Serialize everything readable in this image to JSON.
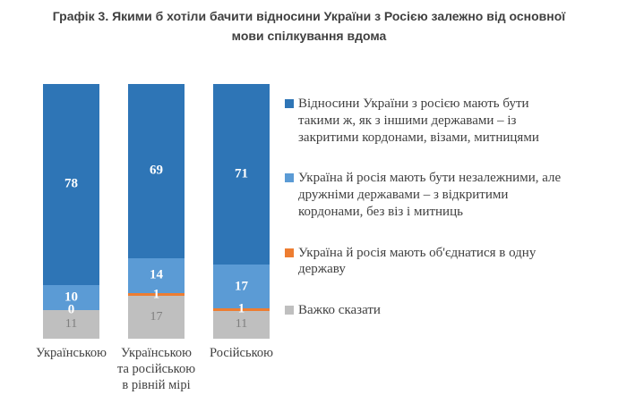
{
  "title": "Графік 3. Якими б хотіли бачити відносини України з Росією залежно від основної мови спілкування вдома",
  "chart_data": {
    "type": "bar",
    "subtype": "stacked-column-100pct",
    "title": "Графік 3. Якими б хотіли бачити відносини України з Росією залежно від основної мови спілкування вдома",
    "categories": [
      "Українською",
      "Українською та російською в рівній мірі",
      "Російською"
    ],
    "category_lines": [
      [
        "Українською"
      ],
      [
        "Українською",
        "та російською",
        "в рівній мірі"
      ],
      [
        "Російською"
      ]
    ],
    "series": [
      {
        "name": "Відносини України з росією мають бути такими ж, як з іншими державами – із закритими кордонами, візами, митницями",
        "name_lines": [
          "Відносини України з росією мають бути",
          "такими ж, як з іншими державами  – із",
          "закритими кордонами, візами, митницями"
        ],
        "color": "#2e75b6",
        "label_color": "#ffffff",
        "values": [
          78,
          69,
          71
        ]
      },
      {
        "name": "Україна й росія мають бути незалежними, але дружніми державами – з відкритими кордонами, без віз і митниць",
        "name_lines": [
          "Україна й росія мають бути незалежними, але",
          "дружніми державами  – з відкритими",
          "кордонами, без віз і митниць"
        ],
        "color": "#5b9bd5",
        "label_color": "#ffffff",
        "values": [
          10,
          14,
          17
        ]
      },
      {
        "name": "Україна й росія мають об'єднатися в одну державу",
        "name_lines": [
          "Україна й росія мають об'єднатися в одну",
          "державу"
        ],
        "color": "#ed7d31",
        "label_color": "#ffffff",
        "values": [
          0,
          1,
          1
        ]
      },
      {
        "name": "Важко сказати",
        "name_lines": [
          "Важко сказати"
        ],
        "color": "#bfbfbf",
        "label_color": "#7f7f7f",
        "values": [
          11,
          17,
          11
        ]
      }
    ],
    "stack_order": "first-series-on-top",
    "legend_position": "right",
    "grid": false,
    "axes_visible": false,
    "value_suffix": "",
    "xlabel": "",
    "ylabel": ""
  }
}
